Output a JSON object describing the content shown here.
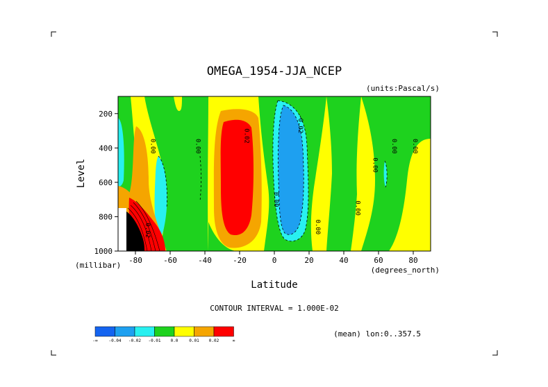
{
  "chart_data": {
    "type": "contour",
    "title": "OMEGA_1954-JJA_NCEP",
    "units_label": "(units:Pascal/s)",
    "xlabel": "Latitude",
    "ylabel": "Level",
    "x_unit_label": "(degrees_north)",
    "y_unit_label": "(millibar)",
    "xlim": [
      -90,
      90
    ],
    "ylim": [
      1000,
      100
    ],
    "x_ticks": [
      {
        "value": -80,
        "label": "-80"
      },
      {
        "value": -60,
        "label": "-60"
      },
      {
        "value": -40,
        "label": "-40"
      },
      {
        "value": -20,
        "label": "-20"
      },
      {
        "value": 0,
        "label": "0"
      },
      {
        "value": 20,
        "label": "20"
      },
      {
        "value": 40,
        "label": "40"
      },
      {
        "value": 60,
        "label": "60"
      },
      {
        "value": 80,
        "label": "80"
      }
    ],
    "y_ticks": [
      {
        "value": 200,
        "label": "200"
      },
      {
        "value": 400,
        "label": "400"
      },
      {
        "value": 600,
        "label": "600"
      },
      {
        "value": 800,
        "label": "800"
      },
      {
        "value": 1000,
        "label": "1000"
      }
    ],
    "contour_interval_label": "CONTOUR INTERVAL = 1.000E-02",
    "footer_label": "(mean) lon:0..357.5",
    "colorbar": {
      "colors": [
        "#1464f0",
        "#1ea0f0",
        "#28f0f0",
        "#1ed21e",
        "#ffff00",
        "#f5a500",
        "#ff0000"
      ],
      "labels": [
        "-∞",
        "-0.04",
        "-0.02",
        "-0.01",
        "0.0",
        "0.01",
        "0.02",
        "∞"
      ]
    },
    "contour_labels": [
      {
        "x": -71,
        "p": 390,
        "text": "0.00"
      },
      {
        "x": -45,
        "p": 390,
        "text": "0.00"
      },
      {
        "x": -17,
        "p": 330,
        "text": "0.02"
      },
      {
        "x": 0,
        "p": 700,
        "text": "0.00"
      },
      {
        "x": 14,
        "p": 260,
        "text": "-0.02"
      },
      {
        "x": 24,
        "p": 860,
        "text": "0.00"
      },
      {
        "x": 47,
        "p": 750,
        "text": "0.00"
      },
      {
        "x": 57,
        "p": 500,
        "text": "0.00"
      },
      {
        "x": 68,
        "p": 390,
        "text": "0.00"
      },
      {
        "x": 80,
        "p": 390,
        "text": "0.00"
      },
      {
        "x": -74,
        "p": 880,
        "text": "0.02"
      }
    ]
  }
}
